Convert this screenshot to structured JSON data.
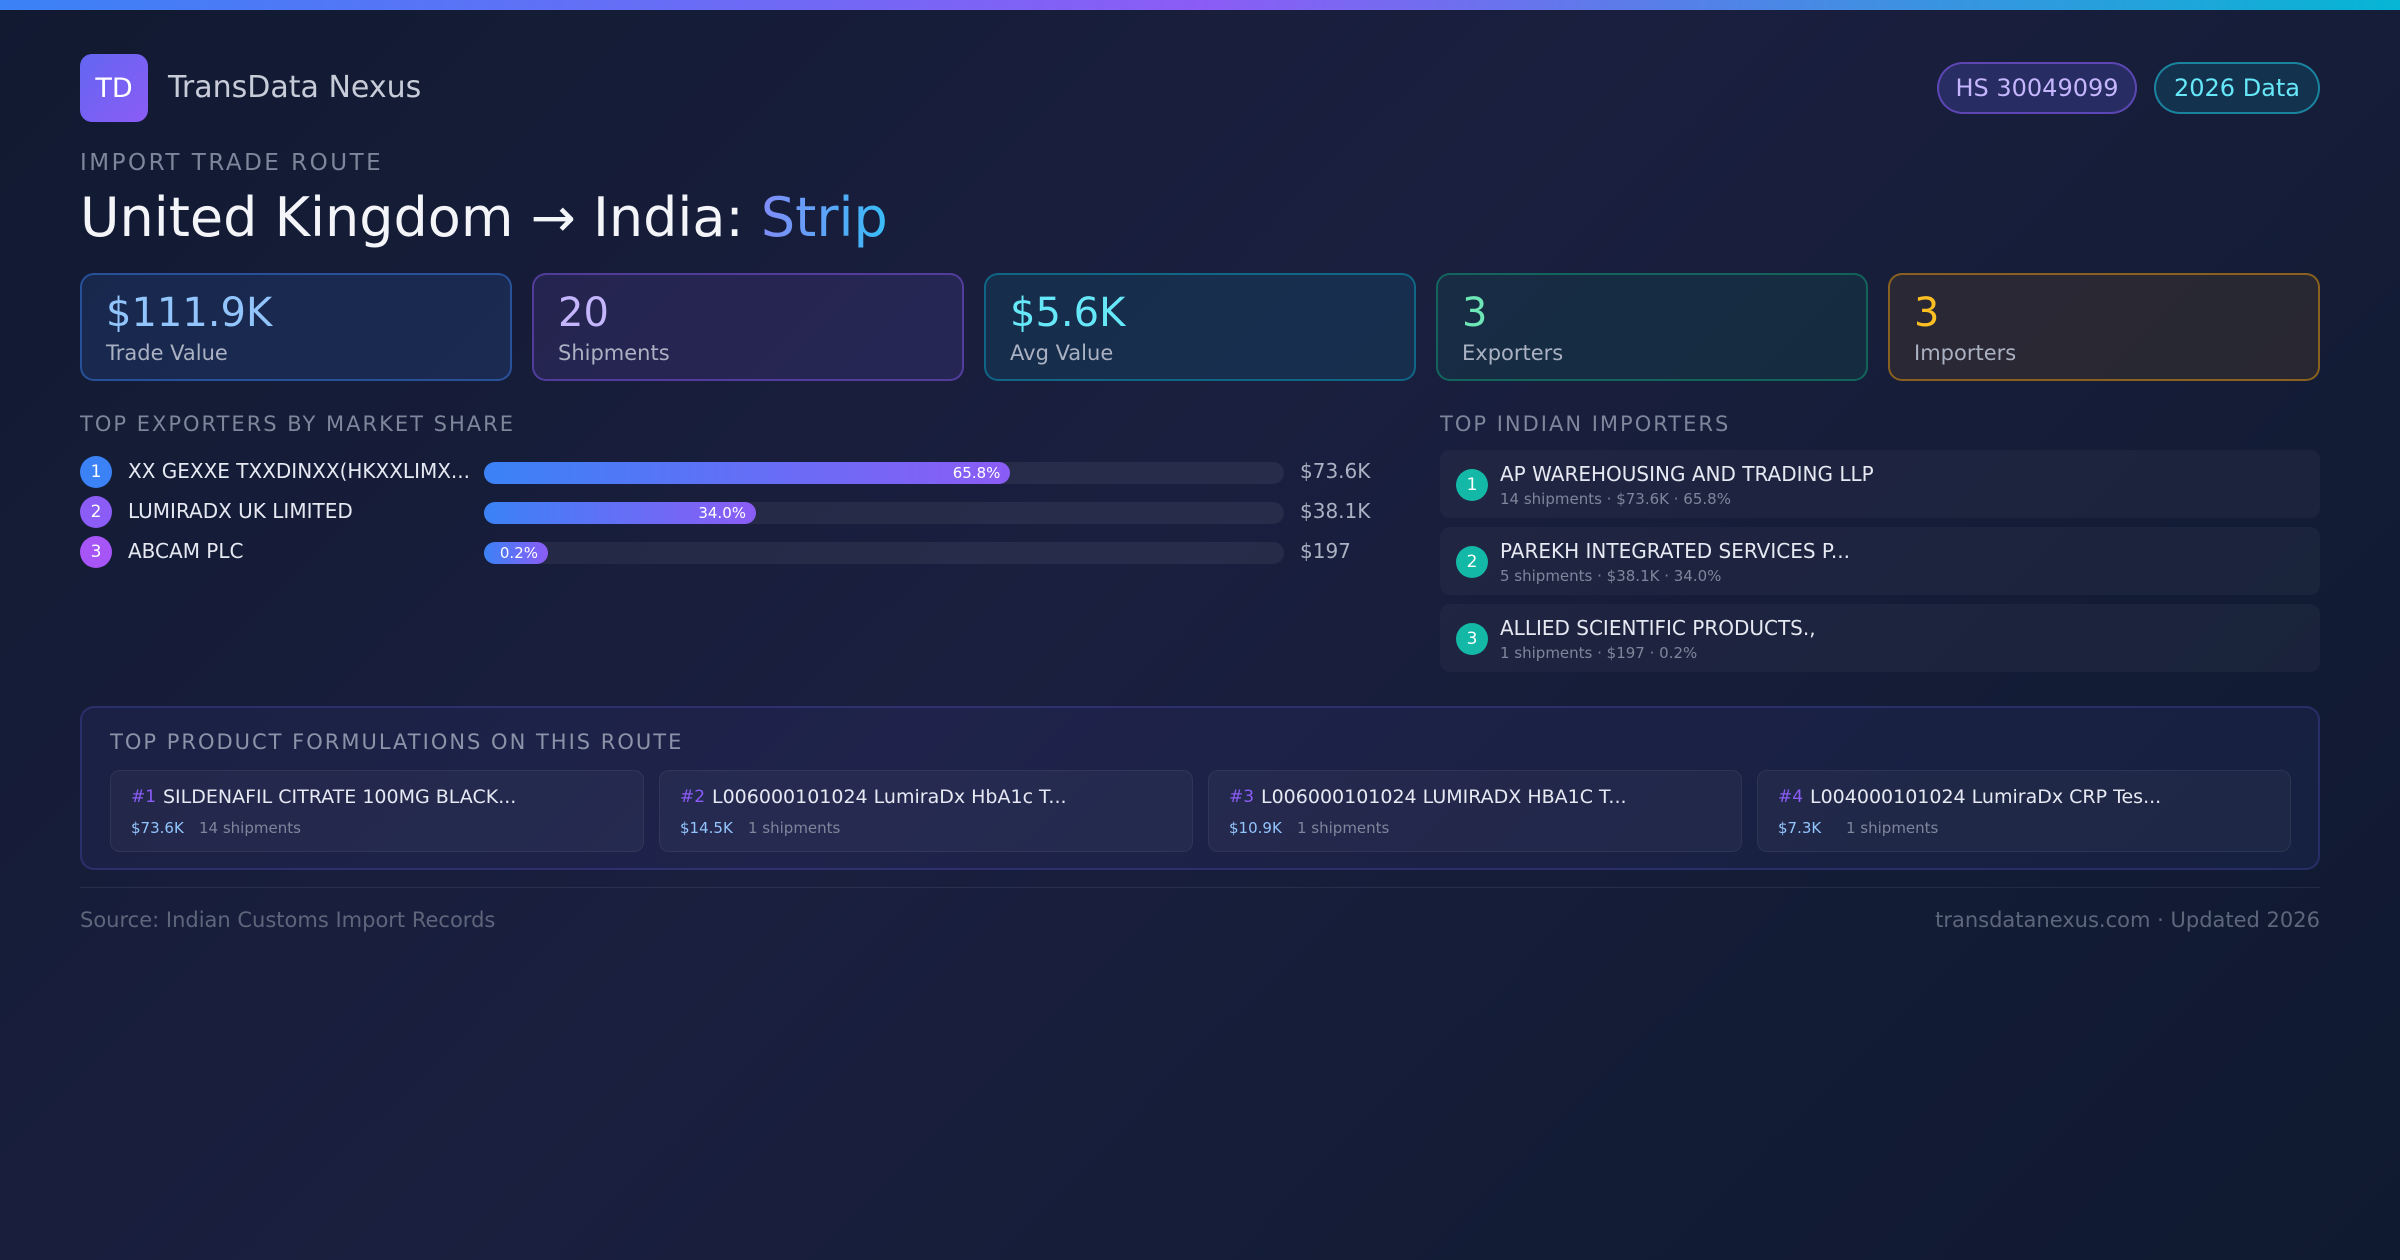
{
  "brand": {
    "initials": "TD",
    "name": "TransData Nexus"
  },
  "badges": {
    "hs_code": "HS 30049099",
    "year": "2026 Data"
  },
  "route": {
    "eyebrow": "IMPORT TRADE ROUTE",
    "title_prefix": "United Kingdom → India: ",
    "product": "Strip"
  },
  "stats": [
    {
      "value": "$111.9K",
      "label": "Trade Value"
    },
    {
      "value": "20",
      "label": "Shipments"
    },
    {
      "value": "$5.6K",
      "label": "Avg Value"
    },
    {
      "value": "3",
      "label": "Exporters"
    },
    {
      "value": "3",
      "label": "Importers"
    }
  ],
  "exporters": {
    "heading": "TOP EXPORTERS BY MARKET SHARE",
    "items": [
      {
        "rank": "1",
        "name": "XX GEXXE TXXDINXX(HKXXLIMX...",
        "share": 65.8,
        "share_label": "65.8%",
        "value": "$73.6K",
        "color": "#3b82f6"
      },
      {
        "rank": "2",
        "name": "LUMIRADX UK LIMITED",
        "share": 34.0,
        "share_label": "34.0%",
        "value": "$38.1K",
        "color": "#8b5cf6"
      },
      {
        "rank": "3",
        "name": "ABCAM PLC",
        "share": 0.2,
        "share_label": "0.2%",
        "value": "$197",
        "color": "#a855f7"
      }
    ]
  },
  "importers": {
    "heading": "TOP INDIAN IMPORTERS",
    "items": [
      {
        "rank": "1",
        "name": "AP WAREHOUSING AND TRADING LLP",
        "meta": "14 shipments · $73.6K · 65.8%"
      },
      {
        "rank": "2",
        "name": "PAREKH INTEGRATED SERVICES P...",
        "meta": "5 shipments · $38.1K · 34.0%"
      },
      {
        "rank": "3",
        "name": "ALLIED SCIENTIFIC PRODUCTS.,",
        "meta": "1 shipments · $197 · 0.2%"
      }
    ]
  },
  "products": {
    "heading": "TOP PRODUCT FORMULATIONS ON THIS ROUTE",
    "items": [
      {
        "rank": "#1",
        "name": "SILDENAFIL CITRATE 100MG BLACK...",
        "value": "$73.6K",
        "shipments": "14 shipments"
      },
      {
        "rank": "#2",
        "name": "L006000101024 LumiraDx HbA1c T...",
        "value": "$14.5K",
        "shipments": "1 shipments"
      },
      {
        "rank": "#3",
        "name": "L006000101024 LUMIRADX HBA1C T...",
        "value": "$10.9K",
        "shipments": "1 shipments"
      },
      {
        "rank": "#4",
        "name": "L004000101024 LumiraDx CRP Tes...",
        "value": "$7.3K",
        "shipments": "1 shipments"
      }
    ]
  },
  "footer": {
    "source": "Source: Indian Customs Import Records",
    "site": "transdatanexus.com · Updated 2026"
  }
}
